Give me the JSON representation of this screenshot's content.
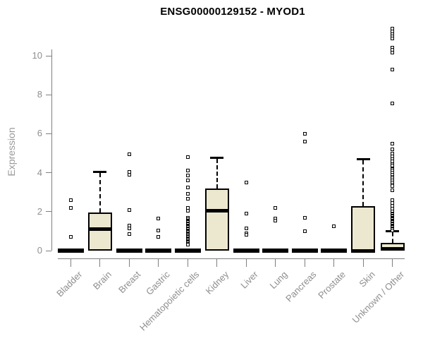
{
  "title": "ENSG00000129152 - MYOD1",
  "y_axis": {
    "label": "Expression",
    "ticks": [
      "0",
      "2",
      "4",
      "6",
      "8",
      "10"
    ]
  },
  "colors": {
    "box_fill": "#ECE7CF",
    "stroke": "#000000",
    "axis": "#7f7f7f",
    "tick_label": "#8e8e8e",
    "title": "#000000"
  },
  "chart_data": {
    "type": "boxplot",
    "title": "ENSG00000129152 - MYOD1",
    "xlabel": "",
    "ylabel": "Expression",
    "ylim": [
      0,
      11.5
    ],
    "y_ticks": [
      0,
      2,
      4,
      6,
      8,
      10
    ],
    "grid": false,
    "legend": false,
    "categories": [
      "Bladder",
      "Brain",
      "Breast",
      "Gastric",
      "Hematopoietic cells",
      "Kidney",
      "Liver",
      "Lung",
      "Pancreas",
      "Prostate",
      "Skin",
      "Unknown / Other"
    ],
    "series": [
      {
        "name": "Bladder",
        "min": 0,
        "q1": 0,
        "median": 0,
        "q3": 0,
        "whisker_high": 0,
        "outliers": [
          2.6,
          2.2,
          0.7
        ]
      },
      {
        "name": "Brain",
        "min": 0,
        "q1": 0,
        "median": 1.1,
        "q3": 1.95,
        "whisker_high": 4.05,
        "outliers": []
      },
      {
        "name": "Breast",
        "min": 0,
        "q1": 0,
        "median": 0,
        "q3": 0,
        "whisker_high": 0,
        "outliers": [
          4.95,
          4.05,
          3.9,
          2.1,
          1.3,
          1.15,
          0.85
        ]
      },
      {
        "name": "Gastric",
        "min": 0,
        "q1": 0,
        "median": 0,
        "q3": 0,
        "whisker_high": 0,
        "outliers": [
          1.65,
          1.05,
          0.7
        ]
      },
      {
        "name": "Hematopoietic cells",
        "min": 0,
        "q1": 0,
        "median": 0,
        "q3": 0,
        "whisker_high": 0,
        "outliers": [
          4.8,
          4.1,
          3.85,
          3.6,
          3.25,
          2.9,
          2.65,
          2.2,
          2.05,
          1.7,
          1.6,
          1.55,
          1.5,
          1.45,
          1.4,
          1.35,
          1.3,
          1.25,
          1.2,
          1.15,
          1.1,
          1.05,
          1.0,
          0.95,
          0.9,
          0.85,
          0.8,
          0.75,
          0.7,
          0.65,
          0.6,
          0.55,
          0.5,
          0.45,
          0.4,
          0.35,
          0.3
        ]
      },
      {
        "name": "Kidney",
        "min": 0,
        "q1": 0,
        "median": 2.05,
        "q3": 3.2,
        "whisker_high": 4.8,
        "outliers": []
      },
      {
        "name": "Liver",
        "min": 0,
        "q1": 0,
        "median": 0,
        "q3": 0,
        "whisker_high": 0,
        "outliers": [
          3.5,
          1.9,
          1.15,
          0.9,
          0.8
        ]
      },
      {
        "name": "Lung",
        "min": 0,
        "q1": 0,
        "median": 0,
        "q3": 0,
        "whisker_high": 0,
        "outliers": [
          2.2,
          1.65,
          1.55
        ]
      },
      {
        "name": "Pancreas",
        "min": 0,
        "q1": 0,
        "median": 0,
        "q3": 0,
        "whisker_high": 0,
        "outliers": [
          6.0,
          5.6,
          1.7,
          1.0
        ]
      },
      {
        "name": "Prostate",
        "min": 0,
        "q1": 0,
        "median": 0,
        "q3": 0,
        "whisker_high": 0,
        "outliers": [
          1.25
        ]
      },
      {
        "name": "Skin",
        "min": 0,
        "q1": 0,
        "median": 0,
        "q3": 2.3,
        "whisker_high": 4.7,
        "outliers": []
      },
      {
        "name": "Unknown / Other",
        "min": 0,
        "q1": 0,
        "median": 0.1,
        "q3": 0.4,
        "whisker_high": 1.0,
        "outliers": [
          11.4,
          11.25,
          11.1,
          11.0,
          10.9,
          10.4,
          10.3,
          10.15,
          9.3,
          7.55,
          5.5,
          5.2,
          5.0,
          4.85,
          4.7,
          4.6,
          4.45,
          4.35,
          4.2,
          4.1,
          4.0,
          3.9,
          3.8,
          3.7,
          3.6,
          3.5,
          3.4,
          3.3,
          3.1,
          2.6,
          2.45,
          2.3,
          2.15,
          2.0,
          1.9,
          1.85,
          1.8,
          1.75,
          1.7,
          1.65,
          1.6,
          1.55,
          1.5,
          1.45,
          1.4,
          1.35,
          1.3,
          1.25,
          1.2,
          1.15,
          1.1,
          1.05
        ]
      }
    ]
  }
}
